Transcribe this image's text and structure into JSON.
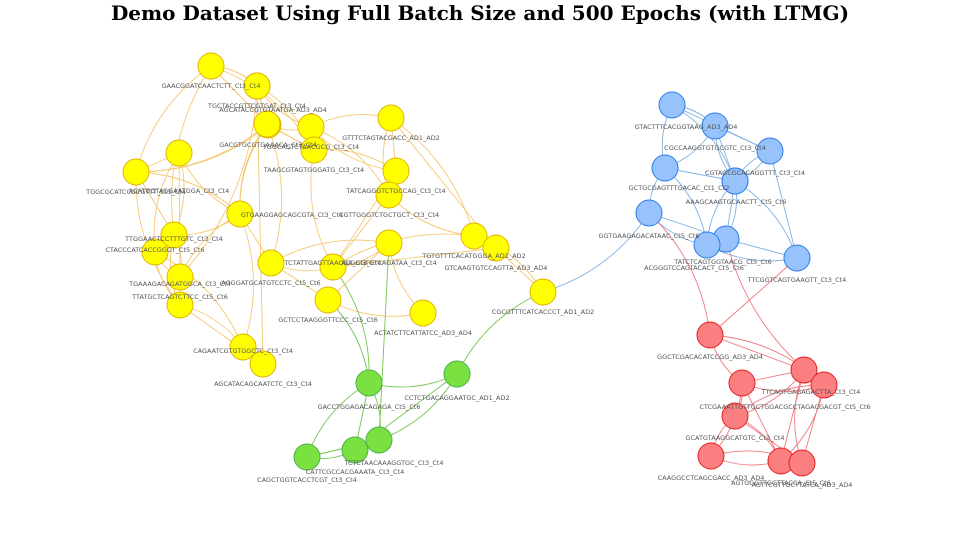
{
  "title": "Demo Dataset Using Full Batch Size and 500 Epochs (with LTMG)",
  "colors": {
    "yellow": {
      "fill": "#ffff00",
      "stroke": "#e0b400",
      "edge": "#f6c870"
    },
    "blue": {
      "fill": "#97c2fc",
      "stroke": "#2b7ce9",
      "edge": "#7fb1e3"
    },
    "red": {
      "fill": "#fb7e81",
      "stroke": "#e42020",
      "edge": "#f07a80"
    },
    "green": {
      "fill": "#7be141",
      "stroke": "#4aad52",
      "edge": "#72c64a"
    }
  },
  "nodes": [
    {
      "id": "y1",
      "group": "yellow",
      "label": "GAACGGATCAACTCTT_Ct3_Ct4"
    },
    {
      "id": "y2",
      "group": "yellow",
      "label": "TGCTACCGTTCGTGAT_Ct3_Ct4"
    },
    {
      "id": "y3",
      "group": "yellow",
      "label": "GACGTGCGTGAAACA_Ct3_Ct4"
    },
    {
      "id": "y4",
      "group": "yellow",
      "label": "TGGCAGTCTAACGCG_Ct3_Ct4"
    },
    {
      "id": "y5",
      "group": "yellow",
      "label": "GTTTCTAGTACGACC_AD1_AD2"
    },
    {
      "id": "y6",
      "group": "yellow",
      "label": "TGGCGCATCCGCGTTT_Ct3_Ct4"
    },
    {
      "id": "y7",
      "group": "yellow",
      "label": "ACATGGTAGGAATGGA_Ct3_Ct4"
    },
    {
      "id": "y8",
      "group": "yellow",
      "label": "TAAGCGTAGTGGGATG_Ct3_Ct4"
    },
    {
      "id": "y9",
      "group": "yellow",
      "label": "TATCAGGGTCTGCCAG_Ct3_Ct4"
    },
    {
      "id": "y10",
      "group": "yellow",
      "label": "AGCATACCGTGTAATGA_AD3_AD4"
    },
    {
      "id": "y11",
      "group": "yellow",
      "label": "CGTTGGGTCTGCTGCT_Ct3_Ct4"
    },
    {
      "id": "y12",
      "group": "yellow",
      "label": "GTGAAGGAGCAGCGTA_Ct3_Ct4"
    },
    {
      "id": "y13",
      "group": "yellow",
      "label": "TTGGAACTCCTTTGTC_Ct3_Ct4"
    },
    {
      "id": "y14",
      "group": "yellow",
      "label": "TTATGCTCAGTCTTCC_Ct5_Ct6"
    },
    {
      "id": "y15",
      "group": "yellow",
      "label": "AGGGATGCATGTCCTC_Ct5_Ct6"
    },
    {
      "id": "y16",
      "group": "yellow",
      "label": "TCTATTGAGTTAACGA_Ct3_Ct4"
    },
    {
      "id": "y17",
      "group": "yellow",
      "label": "TGTGTTTCACATGGGA_AD1_AD2"
    },
    {
      "id": "y18",
      "group": "yellow",
      "label": "GTCAAGTGTCCAGTTA_AD3_AD4"
    },
    {
      "id": "y19",
      "group": "yellow",
      "label": "CTACCCATCACCGGGT_Ct5_Ct6"
    },
    {
      "id": "y20",
      "group": "yellow",
      "label": "ACGGGTGTCAGATAA_Ct3_Ct4"
    },
    {
      "id": "y21",
      "group": "yellow",
      "label": "TGAAAGACAGATGGCA_Ct3_Ct4"
    },
    {
      "id": "y22",
      "group": "yellow",
      "label": "GCTCCTAAGGGTTCCC_Ct5_Ct6"
    },
    {
      "id": "y23",
      "group": "yellow",
      "label": "CGCGTTTCATCACCCT_AD1_AD2"
    },
    {
      "id": "y24",
      "group": "yellow",
      "label": "ACTATCTTCATTATCC_AD3_AD4"
    },
    {
      "id": "y25",
      "group": "yellow",
      "label": "CAGAATCGTGTGGCTC_Ct3_Ct4"
    },
    {
      "id": "y26",
      "group": "yellow",
      "label": "AGCATACAGCAATCTC_Ct3_Ct4"
    },
    {
      "id": "y27",
      "group": "yellow",
      "label": ""
    },
    {
      "id": "g1",
      "group": "green",
      "label": "GACCTGGAGACAGAGA_Ct5_Ct6"
    },
    {
      "id": "g2",
      "group": "green",
      "label": "CCTCTGACAGGAATGC_AD1_AD2"
    },
    {
      "id": "g3",
      "group": "green",
      "label": "TCTCTAACAAAGGTGC_Ct3_Ct4"
    },
    {
      "id": "g4",
      "group": "green",
      "label": "CATTCGCCACGAAATA_Ct3_Ct4"
    },
    {
      "id": "g5",
      "group": "green",
      "label": "CAGCTGGTCACCTCGT_Ct3_Ct4"
    },
    {
      "id": "b1",
      "group": "blue",
      "label": "GTACTTTCACGGTAAG_AD3_AD4"
    },
    {
      "id": "b2",
      "group": "blue",
      "label": "CGCCAAGGTGTGCGTC_Ct3_Ct4"
    },
    {
      "id": "b3",
      "group": "blue",
      "label": ""
    },
    {
      "id": "b4",
      "group": "blue",
      "label": "CGTAGCGCACAGGTTT_Ct3_Ct4"
    },
    {
      "id": "b5",
      "group": "blue",
      "label": "GCTGCGAGTTTGACAC_Ct1_Ct2"
    },
    {
      "id": "b6",
      "group": "blue",
      "label": "AAAGCAAGTGCAACTT_Ct5_Ct6"
    },
    {
      "id": "b7",
      "group": "blue",
      "label": "GGTGAAGAGACATAAC_Ct5_Ct6"
    },
    {
      "id": "b8",
      "group": "blue",
      "label": "TATCTCAGTGGTAACG_Ct5_Ct6"
    },
    {
      "id": "b9",
      "group": "blue",
      "label": "ACGGGTCCAGTACACT_Ct5_Ct6"
    },
    {
      "id": "b10",
      "group": "blue",
      "label": "TTCGGTCAGTGAAGTT_Ct3_Ct4"
    },
    {
      "id": "r1",
      "group": "red",
      "label": "GGCTCGACACATCCGG_AD3_AD4"
    },
    {
      "id": "r2",
      "group": "red",
      "label": "TTCAGTGAGAGACTTA_Ct3_Ct4"
    },
    {
      "id": "r3",
      "group": "red",
      "label": "CTCGAAATTGTTGCTGGACGCCTAGACGACGT_Ct5_Ct6"
    },
    {
      "id": "r4",
      "group": "red",
      "label": ""
    },
    {
      "id": "r5",
      "group": "red",
      "label": "GCATGTAAGGCATGTC_Ct3_Ct4"
    },
    {
      "id": "r6",
      "group": "red",
      "label": "CAAGGCCTCAGCGACC_AD3_AD4"
    },
    {
      "id": "r7",
      "group": "red",
      "label": "AGTGGGTTGGTTACCA_Ct5_Ct6"
    },
    {
      "id": "r8",
      "group": "red",
      "label": "AGTTCGTTGCTTATCA_AD3_AD4"
    }
  ],
  "edges": [
    [
      "y1",
      "y2"
    ],
    [
      "y1",
      "y3"
    ],
    [
      "y1",
      "y6"
    ],
    [
      "y1",
      "y8"
    ],
    [
      "y2",
      "y3"
    ],
    [
      "y2",
      "y4"
    ],
    [
      "y2",
      "y8"
    ],
    [
      "y2",
      "y10"
    ],
    [
      "y3",
      "y4"
    ],
    [
      "y3",
      "y6"
    ],
    [
      "y3",
      "y8"
    ],
    [
      "y3",
      "y12"
    ],
    [
      "y4",
      "y5"
    ],
    [
      "y4",
      "y8"
    ],
    [
      "y4",
      "y9"
    ],
    [
      "y4",
      "y11"
    ],
    [
      "y5",
      "y9"
    ],
    [
      "y5",
      "y11"
    ],
    [
      "y5",
      "y17"
    ],
    [
      "y6",
      "y7"
    ],
    [
      "y6",
      "y10"
    ],
    [
      "y6",
      "y12"
    ],
    [
      "y6",
      "y13"
    ],
    [
      "y7",
      "y12"
    ],
    [
      "y7",
      "y13"
    ],
    [
      "y7",
      "y14"
    ],
    [
      "y7",
      "y19"
    ],
    [
      "y8",
      "y9"
    ],
    [
      "y8",
      "y10"
    ],
    [
      "y8",
      "y16"
    ],
    [
      "y9",
      "y11"
    ],
    [
      "y9",
      "y16"
    ],
    [
      "y10",
      "y12"
    ],
    [
      "y10",
      "y15"
    ],
    [
      "y11",
      "y16"
    ],
    [
      "y11",
      "y17"
    ],
    [
      "y12",
      "y13"
    ],
    [
      "y12",
      "y15"
    ],
    [
      "y12",
      "y14"
    ],
    [
      "y13",
      "y14"
    ],
    [
      "y13",
      "y19"
    ],
    [
      "y13",
      "y21"
    ],
    [
      "y14",
      "y19"
    ],
    [
      "y14",
      "y21"
    ],
    [
      "y15",
      "y16"
    ],
    [
      "y15",
      "y20"
    ],
    [
      "y15",
      "y22"
    ],
    [
      "y16",
      "y20"
    ],
    [
      "y16",
      "y17"
    ],
    [
      "y16",
      "y18"
    ],
    [
      "y17",
      "y18"
    ],
    [
      "y17",
      "y23"
    ],
    [
      "y18",
      "y23"
    ],
    [
      "y19",
      "y21"
    ],
    [
      "y19",
      "y25"
    ],
    [
      "y20",
      "y22"
    ],
    [
      "y20",
      "y24"
    ],
    [
      "y21",
      "y25"
    ],
    [
      "y21",
      "y26"
    ],
    [
      "y22",
      "y24"
    ],
    [
      "y25",
      "y26"
    ],
    [
      "y26",
      "y27"
    ],
    [
      "y1",
      "y13"
    ],
    [
      "y2",
      "y14"
    ],
    [
      "y5",
      "y18"
    ],
    [
      "y6",
      "y21"
    ],
    [
      "y12",
      "y25"
    ],
    [
      "y27",
      "y3"
    ],
    [
      "g1",
      "g2"
    ],
    [
      "g1",
      "g3"
    ],
    [
      "g1",
      "g4"
    ],
    [
      "g1",
      "g5"
    ],
    [
      "g2",
      "g3"
    ],
    [
      "g2",
      "g4"
    ],
    [
      "g3",
      "g4"
    ],
    [
      "g4",
      "g5"
    ],
    [
      "g3",
      "g5"
    ],
    [
      "g1",
      "y22"
    ],
    [
      "g2",
      "y23"
    ],
    [
      "g3",
      "y20"
    ],
    [
      "g1",
      "y16"
    ],
    [
      "b1",
      "b2"
    ],
    [
      "b1",
      "b3"
    ],
    [
      "b1",
      "b5"
    ],
    [
      "b1",
      "b4"
    ],
    [
      "b2",
      "b3"
    ],
    [
      "b2",
      "b4"
    ],
    [
      "b2",
      "b5"
    ],
    [
      "b2",
      "b6"
    ],
    [
      "b3",
      "b4"
    ],
    [
      "b3",
      "b6"
    ],
    [
      "b3",
      "b10"
    ],
    [
      "b4",
      "b6"
    ],
    [
      "b4",
      "b8"
    ],
    [
      "b5",
      "b6"
    ],
    [
      "b5",
      "b7"
    ],
    [
      "b5",
      "b9"
    ],
    [
      "b6",
      "b8"
    ],
    [
      "b6",
      "b9"
    ],
    [
      "b6",
      "b10"
    ],
    [
      "b7",
      "b8"
    ],
    [
      "b7",
      "b9"
    ],
    [
      "b8",
      "b9"
    ],
    [
      "b8",
      "b10"
    ],
    [
      "b9",
      "b10"
    ],
    [
      "b7",
      "y23"
    ],
    [
      "r1",
      "r2"
    ],
    [
      "r1",
      "r3"
    ],
    [
      "r1",
      "r4"
    ],
    [
      "r2",
      "r3"
    ],
    [
      "r2",
      "r4"
    ],
    [
      "r2",
      "r5"
    ],
    [
      "r2",
      "r7"
    ],
    [
      "r3",
      "r4"
    ],
    [
      "r3",
      "r5"
    ],
    [
      "r3",
      "r7"
    ],
    [
      "r4",
      "r5"
    ],
    [
      "r4",
      "r7"
    ],
    [
      "r4",
      "r8"
    ],
    [
      "r5",
      "r6"
    ],
    [
      "r5",
      "r7"
    ],
    [
      "r5",
      "r8"
    ],
    [
      "r6",
      "r7"
    ],
    [
      "r6",
      "r8"
    ],
    [
      "r7",
      "r8"
    ],
    [
      "r2",
      "r8"
    ],
    [
      "r3",
      "r6"
    ],
    [
      "r1",
      "b10"
    ],
    [
      "r1",
      "b7"
    ],
    [
      "r4",
      "b8"
    ]
  ]
}
